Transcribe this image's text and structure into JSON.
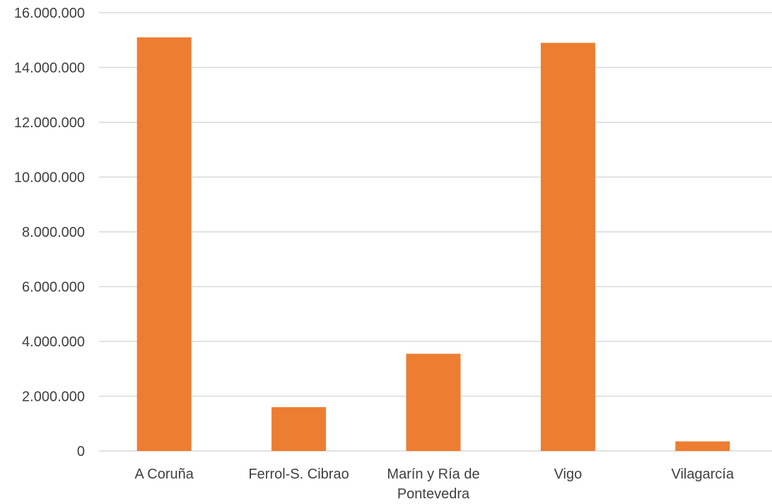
{
  "chart_data": {
    "type": "bar",
    "title": "",
    "xlabel": "",
    "ylabel": "",
    "categories": [
      "A Coruña",
      "Ferrol-S. Cibrao",
      "Marín y Ría de Pontevedra",
      "Vigo",
      "Vilagarcía"
    ],
    "category_lines": [
      [
        "A Coruña"
      ],
      [
        "Ferrol-S. Cibrao"
      ],
      [
        "Marín y Ría de",
        "Pontevedra"
      ],
      [
        "Vigo"
      ],
      [
        "Vilagarcía"
      ]
    ],
    "values": [
      15100000,
      1600000,
      3550000,
      14900000,
      350000
    ],
    "ylim": [
      0,
      16000000
    ],
    "yticks": [
      0,
      2000000,
      4000000,
      6000000,
      8000000,
      10000000,
      12000000,
      14000000,
      16000000
    ],
    "ytick_labels": [
      "0",
      "2.000.000",
      "4.000.000",
      "6.000.000",
      "8.000.000",
      "10.000.000",
      "12.000.000",
      "14.000.000",
      "16.000.000"
    ],
    "grid": true,
    "legend": "none",
    "bar_color": "#ed7d31",
    "grid_color": "#d9d9d9",
    "text_color": "#404040"
  }
}
